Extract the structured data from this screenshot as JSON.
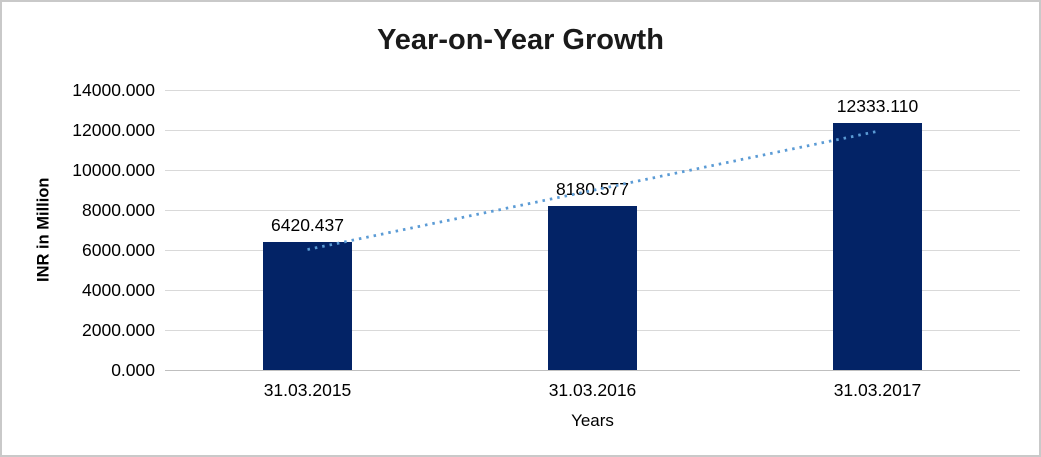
{
  "chart_data": {
    "type": "bar",
    "title": "Year-on-Year Growth",
    "categories": [
      "31.03.2015",
      "31.03.2016",
      "31.03.2017"
    ],
    "values": [
      6420.437,
      8180.577,
      12333.11
    ],
    "data_labels": [
      "6420.437",
      "8180.577",
      "12333.110"
    ],
    "xlabel": "Years",
    "ylabel": "INR in Million",
    "ylim": [
      0,
      14000
    ],
    "ytick_interval": 2000,
    "ytick_labels": [
      "0.000",
      "2000.000",
      "4000.000",
      "6000.000",
      "8000.000",
      "10000.000",
      "12000.000",
      "14000.000"
    ],
    "grid": "horizontal",
    "legend": "none",
    "trendline": {
      "type": "linear",
      "style": "dotted",
      "span": "first to last category center"
    },
    "colors": {
      "bar": "#032366",
      "trendline": "#5B9BD5",
      "gridline": "#D9D9D9",
      "axis_line": "#BFBFBF",
      "text": "#000000",
      "title_text": "#1A1A1A",
      "frame_border": "#C9C9C9",
      "background": "#FFFFFF"
    }
  }
}
